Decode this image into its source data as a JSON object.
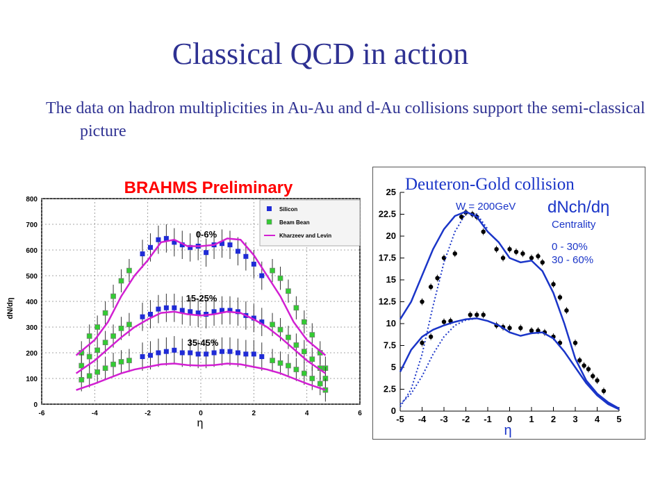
{
  "title": "Classical QCD in action",
  "subtitle": "The data on hadron multiplicities in Au-Au and d-Au collisions support the semi-classical picture",
  "colors": {
    "title": "#2e3192",
    "brahms_title": "#ff0000",
    "silicon": "#1f2bd6",
    "beam_bean": "#33cc33",
    "theory": "#d21fd2",
    "dau_curve": "#1a35c8"
  },
  "chart_data": [
    {
      "type": "scatter",
      "title": "BRAHMS Preliminary",
      "xlabel": "η",
      "ylabel": "dN/dη",
      "xlim": [
        -6,
        6
      ],
      "ylim": [
        0,
        800
      ],
      "x_ticks": [
        "-6",
        "-4",
        "-2",
        "0",
        "2",
        "4",
        "6"
      ],
      "y_ticks": [
        "0",
        "100",
        "200",
        "300",
        "400",
        "500",
        "600",
        "700",
        "800"
      ],
      "grid": true,
      "legend_position": "top-right",
      "legend": [
        "Silicon",
        "Beam Bean",
        "Kharzeev and Levin"
      ],
      "annotations": [
        "0-6%",
        "15-25%",
        "35-45%"
      ],
      "series": [
        {
          "name": "Silicon",
          "centrality": "0-6%",
          "x": [
            -2.2,
            -1.9,
            -1.6,
            -1.3,
            -1.0,
            -0.7,
            -0.4,
            -0.1,
            0.2,
            0.5,
            0.8,
            1.1,
            1.4,
            1.7,
            2.0,
            2.3
          ],
          "y": [
            585,
            610,
            640,
            645,
            630,
            620,
            610,
            615,
            590,
            620,
            625,
            620,
            595,
            575,
            545,
            500
          ]
        },
        {
          "name": "Silicon",
          "centrality": "15-25%",
          "x": [
            -2.2,
            -1.9,
            -1.6,
            -1.3,
            -1.0,
            -0.7,
            -0.4,
            -0.1,
            0.2,
            0.5,
            0.8,
            1.1,
            1.4,
            1.7,
            2.0,
            2.3
          ],
          "y": [
            340,
            350,
            370,
            375,
            375,
            365,
            360,
            355,
            350,
            360,
            365,
            365,
            360,
            345,
            335,
            320
          ]
        },
        {
          "name": "Silicon",
          "centrality": "35-45%",
          "x": [
            -2.2,
            -1.9,
            -1.6,
            -1.3,
            -1.0,
            -0.7,
            -0.4,
            -0.1,
            0.2,
            0.5,
            0.8,
            1.1,
            1.4,
            1.7,
            2.0,
            2.3
          ],
          "y": [
            185,
            190,
            200,
            205,
            210,
            200,
            200,
            195,
            195,
            200,
            205,
            205,
            200,
            195,
            195,
            185
          ]
        },
        {
          "name": "Beam Bean",
          "centrality": "0-6%",
          "x": [
            -4.5,
            -4.2,
            -3.9,
            -3.6,
            -3.3,
            -3.0,
            -2.7,
            2.7,
            3.0,
            3.3,
            3.6,
            3.9,
            4.2,
            4.5,
            4.7
          ],
          "y": [
            200,
            265,
            300,
            355,
            420,
            480,
            520,
            520,
            490,
            440,
            375,
            320,
            270,
            200,
            140
          ]
        },
        {
          "name": "Beam Bean",
          "centrality": "15-25%",
          "x": [
            -4.5,
            -4.2,
            -3.9,
            -3.6,
            -3.3,
            -3.0,
            -2.7,
            2.7,
            3.0,
            3.3,
            3.6,
            3.9,
            4.2,
            4.5,
            4.7
          ],
          "y": [
            150,
            185,
            210,
            240,
            265,
            295,
            310,
            310,
            290,
            260,
            230,
            205,
            175,
            140,
            100
          ]
        },
        {
          "name": "Beam Bean",
          "centrality": "35-45%",
          "x": [
            -4.5,
            -4.2,
            -3.9,
            -3.6,
            -3.3,
            -3.0,
            -2.7,
            2.7,
            3.0,
            3.3,
            3.6,
            3.9,
            4.2,
            4.5,
            4.7
          ],
          "y": [
            95,
            110,
            125,
            140,
            155,
            165,
            170,
            170,
            160,
            150,
            135,
            120,
            100,
            80,
            55
          ]
        },
        {
          "name": "Kharzeev and Levin",
          "centrality": "0-6%",
          "x": [
            -4.7,
            -4.0,
            -3.5,
            -3.0,
            -2.5,
            -2.0,
            -1.5,
            -1.0,
            -0.5,
            0,
            0.5,
            1.0,
            1.5,
            2.0,
            2.5,
            3.0,
            3.5,
            4.0,
            4.7
          ],
          "y": [
            190,
            250,
            320,
            420,
            500,
            560,
            630,
            640,
            615,
            615,
            620,
            645,
            640,
            580,
            500,
            420,
            320,
            250,
            190
          ]
        },
        {
          "name": "Kharzeev and Levin",
          "centrality": "15-25%",
          "x": [
            -4.7,
            -4.0,
            -3.5,
            -3.0,
            -2.5,
            -2.0,
            -1.5,
            -1.0,
            -0.5,
            0,
            0.5,
            1.0,
            1.5,
            2.0,
            2.5,
            3.0,
            3.5,
            4.0,
            4.7
          ],
          "y": [
            120,
            170,
            215,
            260,
            300,
            330,
            355,
            360,
            350,
            345,
            350,
            360,
            355,
            330,
            300,
            260,
            215,
            170,
            120
          ]
        },
        {
          "name": "Kharzeev and Levin",
          "centrality": "35-45%",
          "x": [
            -4.7,
            -4.0,
            -3.5,
            -3.0,
            -2.5,
            -2.0,
            -1.5,
            -1.0,
            -0.5,
            0,
            0.5,
            1.0,
            1.5,
            2.0,
            2.5,
            3.0,
            3.5,
            4.0,
            4.7
          ],
          "y": [
            55,
            80,
            100,
            120,
            135,
            145,
            155,
            158,
            152,
            150,
            152,
            158,
            155,
            145,
            135,
            120,
            100,
            80,
            55
          ]
        }
      ]
    },
    {
      "type": "line",
      "title": "Deuteron-Gold collision",
      "xlabel": "η",
      "ylabel": "",
      "xlim": [
        -5,
        5
      ],
      "ylim": [
        0,
        25
      ],
      "x_ticks": [
        "-5",
        "-4",
        "-3",
        "-2",
        "-1",
        "0",
        "1",
        "2",
        "3",
        "4",
        "5"
      ],
      "y_ticks": [
        "0",
        "2.5",
        "5",
        "7.5",
        "10",
        "12.5",
        "15",
        "17.5",
        "20",
        "22.5",
        "25"
      ],
      "annotations": [
        "W = 200GeV",
        "dNch/dη",
        "Centrality",
        "0 - 30%",
        "30 - 60%"
      ],
      "series": [
        {
          "name": "0 - 30%",
          "kind": "data",
          "x": [
            -4.0,
            -3.6,
            -3.3,
            -3.0,
            -2.5,
            -2.2,
            -2.0,
            -1.7,
            -1.5,
            -1.2,
            -0.6,
            -0.3,
            0,
            0.3,
            0.6,
            1.0,
            1.3,
            1.5,
            2.0,
            2.3,
            2.6
          ],
          "y": [
            12.5,
            14.2,
            15.2,
            17.5,
            18.0,
            22.2,
            22.7,
            22.5,
            22.2,
            20.5,
            18.5,
            17.5,
            18.5,
            18.2,
            18.0,
            17.5,
            17.7,
            17.0,
            14.5,
            13.0,
            11.5
          ]
        },
        {
          "name": "30 - 60%",
          "kind": "data",
          "x": [
            -4.0,
            -3.6,
            -3.0,
            -2.7,
            -1.8,
            -1.5,
            -1.2,
            -0.6,
            -0.3,
            0,
            0.5,
            1.0,
            1.3,
            1.6,
            2.0,
            2.3,
            3.0,
            3.2,
            3.4,
            3.6,
            3.8,
            4.0,
            4.3
          ],
          "y": [
            7.8,
            8.5,
            10.2,
            10.3,
            11.0,
            11.0,
            11.0,
            9.8,
            9.6,
            9.5,
            9.5,
            9.2,
            9.2,
            9.0,
            8.5,
            7.8,
            7.8,
            5.8,
            5.2,
            4.8,
            4.0,
            3.5,
            2.3
          ]
        },
        {
          "name": "0 - 30%",
          "kind": "solid",
          "x": [
            -5,
            -4.5,
            -4,
            -3.5,
            -3,
            -2.5,
            -2,
            -1.5,
            -1,
            -0.5,
            0,
            0.5,
            1,
            1.5,
            2,
            2.5,
            3,
            3.5,
            4,
            4.5,
            5
          ],
          "y": [
            10.5,
            12.5,
            15.5,
            18.5,
            20.8,
            22.3,
            22.8,
            22.2,
            20.5,
            19.3,
            17.5,
            17.0,
            17.2,
            16.0,
            13.5,
            10.0,
            6.0,
            3.5,
            2.0,
            1.0,
            0.3
          ]
        },
        {
          "name": "30 - 60%",
          "kind": "solid",
          "x": [
            -5,
            -4.5,
            -4,
            -3.5,
            -3,
            -2.5,
            -2,
            -1.5,
            -1,
            -0.5,
            0,
            0.5,
            1,
            1.5,
            2,
            2.5,
            3,
            3.5,
            4,
            4.5,
            5
          ],
          "y": [
            4.5,
            7.0,
            8.5,
            9.3,
            9.8,
            10.2,
            10.5,
            10.6,
            10.3,
            9.8,
            9.0,
            8.6,
            8.9,
            9.0,
            8.3,
            6.8,
            5.0,
            3.2,
            1.8,
            0.8,
            0.2
          ]
        },
        {
          "name": "0 - 30%",
          "kind": "dotted",
          "x": [
            -5,
            -4.5,
            -4,
            -3.5,
            -3,
            -2.5,
            -2,
            -1.5,
            -1
          ],
          "y": [
            0.5,
            2.5,
            6.5,
            12.0,
            17.0,
            20.5,
            22.6,
            22.5,
            20.8
          ]
        },
        {
          "name": "30 - 60%",
          "kind": "dotted",
          "x": [
            -5,
            -4.5,
            -4,
            -3.5,
            -3,
            -2.5,
            -2,
            -1.5
          ],
          "y": [
            0.8,
            2.0,
            4.0,
            6.5,
            8.5,
            9.8,
            10.4,
            10.6
          ]
        }
      ]
    }
  ]
}
